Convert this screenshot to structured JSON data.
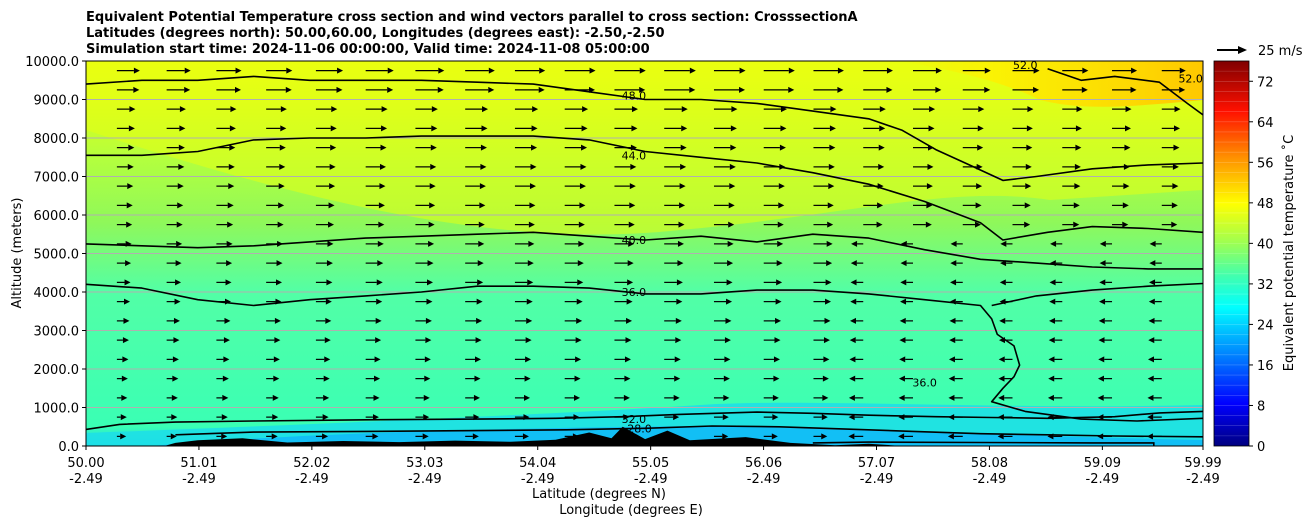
{
  "chart_data": {
    "type": "heatmap",
    "title_lines": [
      "Equivalent Potential Temperature cross section and wind vectors parallel to cross section: CrosssectionA",
      "Latitudes (degrees north): 50.00,60.00, Longitudes (degrees east): -2.50,-2.50",
      "Simulation start time: 2024-11-06 00:00:00, Valid time: 2024-11-08 05:00:00"
    ],
    "ylabel": "Altitude (meters)",
    "xlabel": "Latitude (degrees N)",
    "xlabel2": "Longitude (degrees E)",
    "ylim": [
      0,
      10000
    ],
    "yticks": [
      "0.0",
      "1000.0",
      "2000.0",
      "3000.0",
      "4000.0",
      "5000.0",
      "6000.0",
      "7000.0",
      "8000.0",
      "9000.0",
      "10000.0"
    ],
    "xlim": [
      50.0,
      59.99
    ],
    "xticks": [
      {
        "lat": "50.00",
        "lon": "-2.49",
        "v": 50.0
      },
      {
        "lat": "51.01",
        "lon": "-2.49",
        "v": 51.01
      },
      {
        "lat": "52.02",
        "lon": "-2.49",
        "v": 52.02
      },
      {
        "lat": "53.03",
        "lon": "-2.49",
        "v": 53.03
      },
      {
        "lat": "54.04",
        "lon": "-2.49",
        "v": 54.04
      },
      {
        "lat": "55.05",
        "lon": "-2.49",
        "v": 55.05
      },
      {
        "lat": "56.06",
        "lon": "-2.49",
        "v": 56.06
      },
      {
        "lat": "57.07",
        "lon": "-2.49",
        "v": 57.07
      },
      {
        "lat": "58.08",
        "lon": "-2.49",
        "v": 58.08
      },
      {
        "lat": "59.09",
        "lon": "-2.49",
        "v": 59.09
      },
      {
        "lat": "59.99",
        "lon": "-2.49",
        "v": 59.99
      }
    ],
    "grid": "horizontal",
    "colorbar": {
      "label": "Equivalent potential temperature ˚C",
      "range": [
        0,
        76
      ],
      "ticks": [
        "0",
        "8",
        "16",
        "24",
        "32",
        "40",
        "48",
        "56",
        "64",
        "72"
      ],
      "tick_values": [
        0,
        8,
        16,
        24,
        32,
        40,
        48,
        56,
        64,
        72
      ]
    },
    "quiver_key": "25 m/s",
    "contours": [
      {
        "level": 32,
        "label": "32.0",
        "label_at": [
          54.9,
          700
        ],
        "points": [
          [
            50.0,
            430
          ],
          [
            50.3,
            560
          ],
          [
            50.8,
            620
          ],
          [
            51.5,
            650
          ],
          [
            52.5,
            680
          ],
          [
            53.5,
            700
          ],
          [
            54.2,
            720
          ],
          [
            54.8,
            760
          ],
          [
            55.3,
            820
          ],
          [
            56.0,
            880
          ],
          [
            56.5,
            850
          ],
          [
            57.0,
            800
          ],
          [
            57.6,
            760
          ],
          [
            58.1,
            740
          ],
          [
            58.6,
            720
          ],
          [
            59.2,
            760
          ],
          [
            59.6,
            860
          ],
          [
            59.99,
            900
          ]
        ]
      },
      {
        "level": 28,
        "label": "28.0",
        "label_at": [
          54.95,
          460
        ],
        "points": [
          [
            50.8,
            290
          ],
          [
            51.5,
            360
          ],
          [
            52.5,
            380
          ],
          [
            53.5,
            400
          ],
          [
            54.3,
            420
          ],
          [
            55.0,
            460
          ],
          [
            55.6,
            520
          ],
          [
            56.2,
            500
          ],
          [
            56.8,
            440
          ],
          [
            57.4,
            380
          ],
          [
            58.0,
            320
          ],
          [
            58.6,
            290
          ],
          [
            59.2,
            260
          ],
          [
            59.99,
            240
          ]
        ]
      },
      {
        "level": 36,
        "label": "36.0",
        "label_at": [
          54.9,
          4000
        ],
        "points": [
          [
            50.0,
            4200
          ],
          [
            50.5,
            4100
          ],
          [
            51.0,
            3800
          ],
          [
            51.5,
            3650
          ],
          [
            52.0,
            3800
          ],
          [
            52.5,
            3900
          ],
          [
            53.0,
            4000
          ],
          [
            53.5,
            4150
          ],
          [
            54.0,
            4150
          ],
          [
            54.5,
            4100
          ],
          [
            55.0,
            3950
          ],
          [
            55.5,
            3950
          ],
          [
            56.0,
            4050
          ],
          [
            56.5,
            4050
          ],
          [
            57.0,
            3950
          ],
          [
            57.5,
            3800
          ],
          [
            58.0,
            3650
          ],
          [
            58.1,
            3300
          ],
          [
            58.15,
            2900
          ],
          [
            58.3,
            2600
          ],
          [
            58.35,
            2100
          ],
          [
            58.3,
            1800
          ],
          [
            58.2,
            1500
          ],
          [
            58.1,
            1150
          ],
          [
            58.4,
            900
          ],
          [
            58.9,
            700
          ],
          [
            59.4,
            650
          ],
          [
            59.99,
            720
          ]
        ]
      },
      {
        "level": 36,
        "label": "36.0",
        "label_at": [
          57.5,
          1650
        ],
        "points": []
      },
      {
        "level": 36,
        "label": "",
        "points": [
          [
            58.1,
            3650
          ],
          [
            58.5,
            3900
          ],
          [
            59.0,
            4050
          ],
          [
            59.5,
            4150
          ],
          [
            59.99,
            4220
          ]
        ]
      },
      {
        "level": 40,
        "label": "40.0",
        "label_at": [
          54.9,
          5350
        ],
        "points": [
          [
            50.0,
            5250
          ],
          [
            50.5,
            5200
          ],
          [
            51.0,
            5150
          ],
          [
            51.5,
            5200
          ],
          [
            52.0,
            5300
          ],
          [
            52.5,
            5400
          ],
          [
            53.0,
            5450
          ],
          [
            53.5,
            5500
          ],
          [
            54.0,
            5550
          ],
          [
            54.5,
            5450
          ],
          [
            55.0,
            5350
          ],
          [
            55.5,
            5450
          ],
          [
            56.0,
            5300
          ],
          [
            56.5,
            5500
          ],
          [
            57.0,
            5400
          ],
          [
            57.5,
            5100
          ],
          [
            58.0,
            4850
          ],
          [
            58.5,
            4750
          ],
          [
            59.0,
            4650
          ],
          [
            59.5,
            4600
          ],
          [
            59.99,
            4600
          ]
        ]
      },
      {
        "level": 44,
        "label": "44.0",
        "label_at": [
          54.9,
          7550
        ],
        "points": [
          [
            50.0,
            7550
          ],
          [
            50.5,
            7550
          ],
          [
            51.0,
            7650
          ],
          [
            51.5,
            7950
          ],
          [
            52.0,
            8000
          ],
          [
            52.5,
            8000
          ],
          [
            53.0,
            8050
          ],
          [
            53.5,
            8050
          ],
          [
            54.0,
            8050
          ],
          [
            54.5,
            7950
          ],
          [
            55.0,
            7650
          ],
          [
            55.5,
            7500
          ],
          [
            56.0,
            7350
          ],
          [
            56.5,
            7100
          ],
          [
            57.0,
            6800
          ],
          [
            57.5,
            6350
          ],
          [
            58.0,
            5800
          ],
          [
            58.2,
            5350
          ],
          [
            58.6,
            5550
          ],
          [
            59.0,
            5700
          ],
          [
            59.5,
            5650
          ],
          [
            59.99,
            5550
          ]
        ]
      },
      {
        "level": 48,
        "label": "48.0",
        "label_at": [
          54.9,
          9100
        ],
        "points": [
          [
            50.0,
            9400
          ],
          [
            50.5,
            9500
          ],
          [
            51.0,
            9500
          ],
          [
            51.5,
            9600
          ],
          [
            52.0,
            9500
          ],
          [
            52.5,
            9500
          ],
          [
            53.0,
            9500
          ],
          [
            53.5,
            9450
          ],
          [
            54.0,
            9400
          ],
          [
            54.5,
            9200
          ],
          [
            55.0,
            9000
          ],
          [
            55.5,
            9000
          ],
          [
            56.0,
            8900
          ],
          [
            56.5,
            8700
          ],
          [
            57.0,
            8500
          ],
          [
            57.3,
            8200
          ],
          [
            57.6,
            7700
          ],
          [
            57.9,
            7300
          ],
          [
            58.2,
            6900
          ],
          [
            58.5,
            7000
          ],
          [
            59.0,
            7200
          ],
          [
            59.5,
            7300
          ],
          [
            59.99,
            7350
          ]
        ]
      },
      {
        "level": 52,
        "label": "52.0",
        "label_at": [
          58.4,
          9900
        ],
        "points": [
          [
            58.6,
            9800
          ],
          [
            58.9,
            9500
          ],
          [
            59.2,
            9600
          ],
          [
            59.6,
            9450
          ],
          [
            59.85,
            8900
          ],
          [
            59.99,
            8600
          ]
        ]
      },
      {
        "level": 52,
        "label": "52.0",
        "label_at": [
          59.88,
          9550
        ],
        "points": []
      }
    ],
    "terrain_profile": [
      [
        50.7,
        0
      ],
      [
        50.8,
        80
      ],
      [
        51.0,
        150
      ],
      [
        51.4,
        200
      ],
      [
        51.8,
        90
      ],
      [
        52.3,
        130
      ],
      [
        52.8,
        100
      ],
      [
        53.3,
        140
      ],
      [
        53.8,
        110
      ],
      [
        54.2,
        160
      ],
      [
        54.5,
        350
      ],
      [
        54.7,
        200
      ],
      [
        54.8,
        500
      ],
      [
        55.0,
        180
      ],
      [
        55.2,
        400
      ],
      [
        55.4,
        150
      ],
      [
        55.9,
        230
      ],
      [
        56.3,
        80
      ],
      [
        56.7,
        20
      ],
      [
        57.0,
        60
      ],
      [
        57.3,
        0
      ]
    ],
    "low_layer_line": [
      [
        56.5,
        80
      ],
      [
        57.0,
        100
      ],
      [
        58.0,
        90
      ],
      [
        59.0,
        80
      ],
      [
        59.55,
        80
      ],
      [
        59.55,
        0
      ]
    ]
  }
}
